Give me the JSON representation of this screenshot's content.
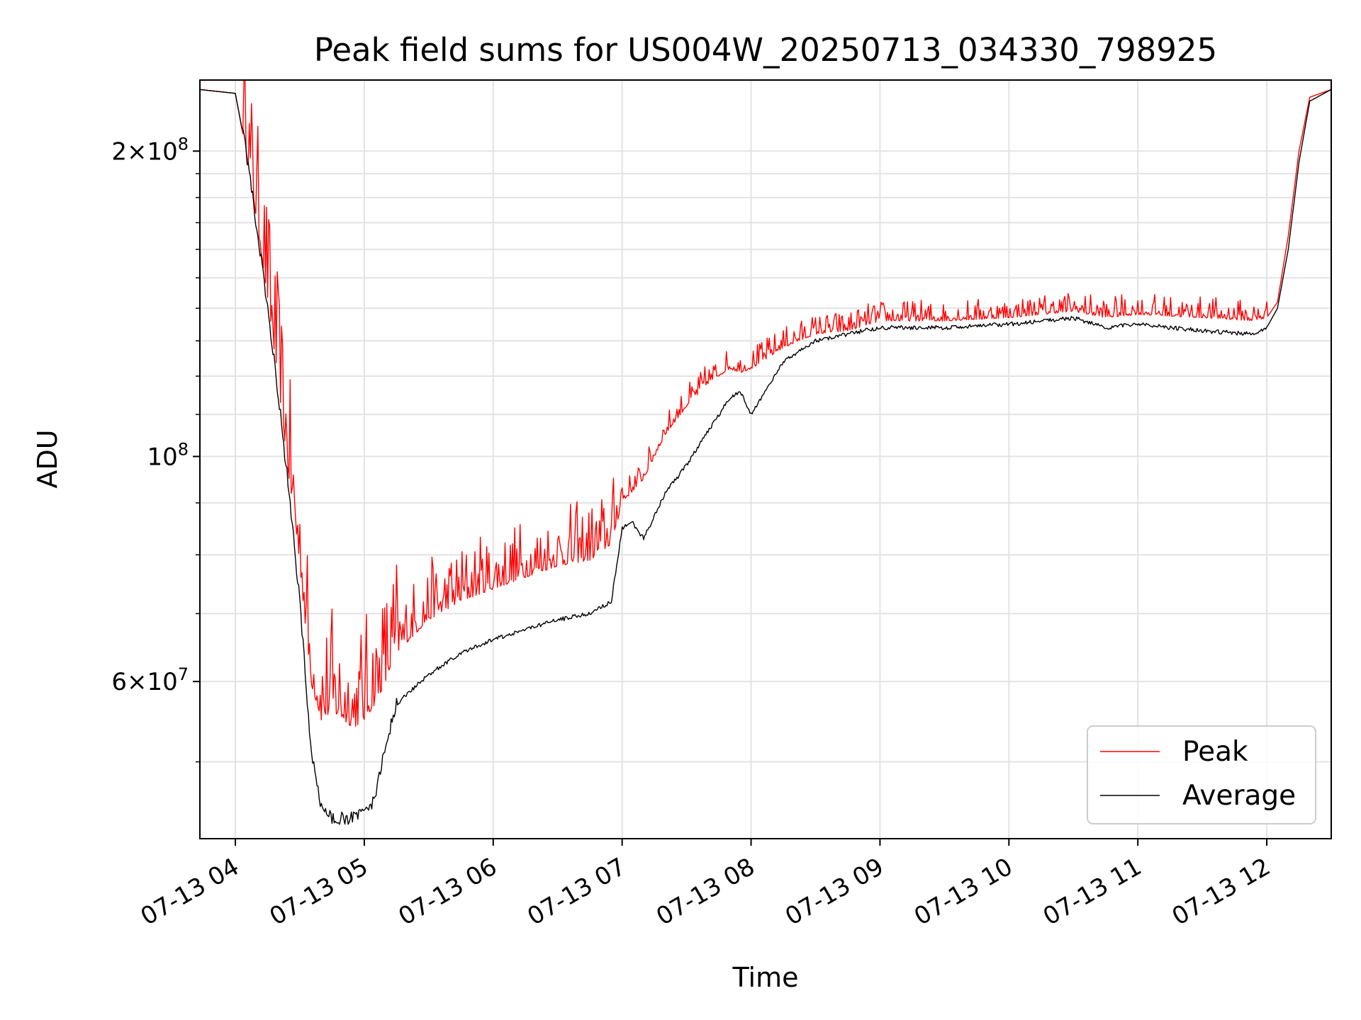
{
  "chart_data": {
    "type": "line",
    "title": "Peak field sums for US004W_20250713_034330_798925",
    "xlabel": "Time",
    "ylabel": "ADU",
    "y_scale": "log",
    "ylim": [
      42000000,
      235000000
    ],
    "xlim": [
      "2025-07-13 03:43:30",
      "2025-07-13 12:30:00"
    ],
    "x_ticks": [
      "07-13 04",
      "07-13 05",
      "07-13 06",
      "07-13 07",
      "07-13 08",
      "07-13 09",
      "07-13 10",
      "07-13 11",
      "07-13 12"
    ],
    "y_ticks": [
      {
        "mant": "2",
        "exp": "8",
        "value": 200000000
      },
      {
        "mant": "",
        "exp": "8",
        "value": 100000000
      },
      {
        "mant": "6",
        "exp": "7",
        "value": 60000000
      }
    ],
    "grid": true,
    "legend_position": "lower-right",
    "colors": {
      "peak": "#ff0000",
      "average": "#000000",
      "grid": "#e3e3e3"
    },
    "series": [
      {
        "name": "Peak",
        "x": [
          "2025-07-13 03:43:30",
          "2025-07-13 04:00:00",
          "2025-07-13 04:05:00",
          "2025-07-13 04:10:00",
          "2025-07-13 04:15:00",
          "2025-07-13 04:20:00",
          "2025-07-13 04:25:00",
          "2025-07-13 04:30:00",
          "2025-07-13 04:35:00",
          "2025-07-13 04:40:00",
          "2025-07-13 04:45:00",
          "2025-07-13 04:50:00",
          "2025-07-13 04:55:00",
          "2025-07-13 05:00:00",
          "2025-07-13 05:05:00",
          "2025-07-13 05:10:00",
          "2025-07-13 05:15:00",
          "2025-07-13 05:30:00",
          "2025-07-13 05:45:00",
          "2025-07-13 06:00:00",
          "2025-07-13 06:15:00",
          "2025-07-13 06:30:00",
          "2025-07-13 06:45:00",
          "2025-07-13 06:55:00",
          "2025-07-13 07:00:00",
          "2025-07-13 07:10:00",
          "2025-07-13 07:20:00",
          "2025-07-13 07:30:00",
          "2025-07-13 07:40:00",
          "2025-07-13 07:50:00",
          "2025-07-13 07:55:00",
          "2025-07-13 08:00:00",
          "2025-07-13 08:15:00",
          "2025-07-13 08:30:00",
          "2025-07-13 08:45:00",
          "2025-07-13 09:00:00",
          "2025-07-13 09:30:00",
          "2025-07-13 10:00:00",
          "2025-07-13 10:30:00",
          "2025-07-13 10:45:00",
          "2025-07-13 11:00:00",
          "2025-07-13 11:30:00",
          "2025-07-13 11:55:00",
          "2025-07-13 12:00:00",
          "2025-07-13 12:05:00",
          "2025-07-13 12:10:00",
          "2025-07-13 12:15:00",
          "2025-07-13 12:20:00",
          "2025-07-13 12:30:00"
        ],
        "y": [
          230000000,
          228000000,
          200000000,
          170000000,
          143000000,
          118000000,
          95000000,
          78000000,
          60000000,
          55000000,
          56000000,
          55000000,
          54000000,
          55000000,
          57000000,
          60000000,
          64000000,
          69000000,
          72000000,
          74000000,
          76000000,
          78000000,
          79000000,
          82000000,
          90000000,
          95000000,
          105000000,
          112000000,
          118000000,
          122000000,
          121000000,
          122000000,
          128000000,
          132000000,
          133000000,
          136000000,
          136000000,
          137000000,
          139000000,
          137000000,
          138000000,
          137000000,
          136000000,
          137000000,
          142000000,
          165000000,
          200000000,
          226000000,
          230000000
        ]
      },
      {
        "name": "Average",
        "x": [
          "2025-07-13 03:43:30",
          "2025-07-13 04:00:00",
          "2025-07-13 04:05:00",
          "2025-07-13 04:10:00",
          "2025-07-13 04:15:00",
          "2025-07-13 04:20:00",
          "2025-07-13 04:25:00",
          "2025-07-13 04:30:00",
          "2025-07-13 04:35:00",
          "2025-07-13 04:40:00",
          "2025-07-13 04:45:00",
          "2025-07-13 04:50:00",
          "2025-07-13 04:55:00",
          "2025-07-13 05:00:00",
          "2025-07-13 05:05:00",
          "2025-07-13 05:10:00",
          "2025-07-13 05:15:00",
          "2025-07-13 05:30:00",
          "2025-07-13 05:45:00",
          "2025-07-13 06:00:00",
          "2025-07-13 06:15:00",
          "2025-07-13 06:30:00",
          "2025-07-13 06:45:00",
          "2025-07-13 06:55:00",
          "2025-07-13 07:00:00",
          "2025-07-13 07:05:00",
          "2025-07-13 07:10:00",
          "2025-07-13 07:20:00",
          "2025-07-13 07:30:00",
          "2025-07-13 07:40:00",
          "2025-07-13 07:50:00",
          "2025-07-13 07:55:00",
          "2025-07-13 08:00:00",
          "2025-07-13 08:15:00",
          "2025-07-13 08:30:00",
          "2025-07-13 08:45:00",
          "2025-07-13 09:00:00",
          "2025-07-13 09:30:00",
          "2025-07-13 10:00:00",
          "2025-07-13 10:30:00",
          "2025-07-13 10:45:00",
          "2025-07-13 11:00:00",
          "2025-07-13 11:30:00",
          "2025-07-13 11:55:00",
          "2025-07-13 12:00:00",
          "2025-07-13 12:05:00",
          "2025-07-13 12:10:00",
          "2025-07-13 12:15:00",
          "2025-07-13 12:20:00",
          "2025-07-13 12:30:00"
        ],
        "y": [
          230000000,
          228000000,
          200000000,
          168000000,
          140000000,
          115000000,
          92000000,
          72000000,
          52000000,
          45000000,
          44000000,
          44000000,
          44000000,
          44500000,
          46000000,
          52000000,
          57000000,
          61000000,
          64000000,
          66000000,
          67500000,
          69000000,
          70000000,
          72000000,
          85000000,
          86000000,
          83000000,
          92000000,
          98000000,
          106000000,
          114000000,
          116000000,
          110000000,
          124000000,
          130000000,
          132000000,
          134000000,
          134000000,
          135000000,
          137000000,
          134000000,
          135000000,
          133000000,
          132000000,
          134000000,
          140000000,
          160000000,
          195000000,
          224000000,
          230000000
        ]
      }
    ]
  }
}
